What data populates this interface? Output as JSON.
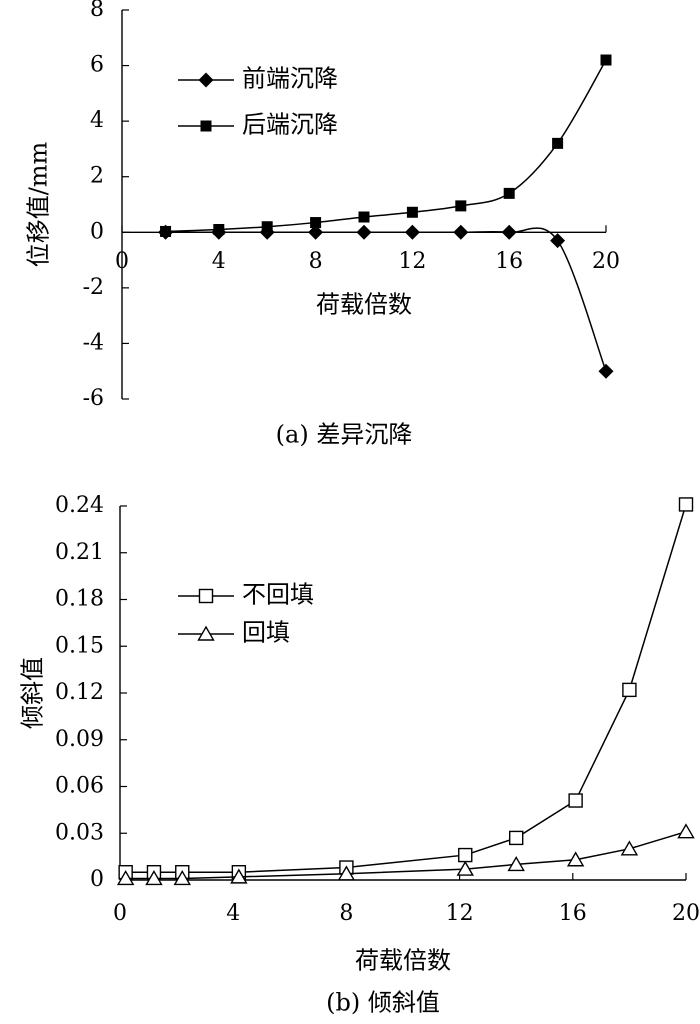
{
  "chart_data": [
    {
      "type": "line",
      "caption": "(a) 差异沉降",
      "xlabel": "荷载倍数",
      "ylabel": "位移值/mm",
      "xlim": [
        0,
        20
      ],
      "ylim": [
        -6,
        8
      ],
      "xticks": [
        0,
        4,
        8,
        12,
        16,
        20
      ],
      "yticks": [
        -6,
        -4,
        -2,
        0,
        2,
        4,
        6,
        8
      ],
      "legend_position": "top-left",
      "grid": false,
      "series": [
        {
          "name": "前端沉降",
          "marker": "diamond-filled",
          "x": [
            1.8,
            4,
            6,
            8,
            10,
            12,
            14,
            16,
            18,
            20
          ],
          "y": [
            0,
            0,
            0,
            0,
            0,
            0,
            0,
            0,
            -0.3,
            -5
          ]
        },
        {
          "name": "后端沉降",
          "marker": "square-filled",
          "x": [
            1.8,
            4,
            6,
            8,
            10,
            12,
            14,
            16,
            18,
            20
          ],
          "y": [
            0.03,
            0.1,
            0.2,
            0.35,
            0.55,
            0.72,
            0.95,
            1.4,
            3.2,
            6.2
          ]
        }
      ]
    },
    {
      "type": "line",
      "caption": "(b) 倾斜值",
      "xlabel": "荷载倍数",
      "ylabel": "倾斜值",
      "xlim": [
        0,
        20
      ],
      "ylim": [
        0,
        0.24
      ],
      "xticks": [
        0,
        4,
        8,
        12,
        16,
        20
      ],
      "yticks": [
        0,
        0.03,
        0.06,
        0.09,
        0.12,
        0.15,
        0.18,
        0.21,
        0.24
      ],
      "ytick_labels": [
        "0",
        "0.03",
        "0.06",
        "0.09",
        "0.12",
        "0.15",
        "0.18",
        "0.21",
        "0.24"
      ],
      "legend_position": "top-left",
      "grid": false,
      "series": [
        {
          "name": "不回填",
          "marker": "square-open",
          "x": [
            0.2,
            1.2,
            2.2,
            4.2,
            8,
            12.2,
            14,
            16.1,
            18,
            20
          ],
          "y": [
            0.005,
            0.005,
            0.005,
            0.005,
            0.008,
            0.016,
            0.027,
            0.051,
            0.122,
            0.241
          ]
        },
        {
          "name": "回填",
          "marker": "triangle-open",
          "x": [
            0.2,
            1.2,
            2.2,
            4.2,
            8,
            12.2,
            14,
            16.1,
            18,
            20
          ],
          "y": [
            0.001,
            0.001,
            0.001,
            0.002,
            0.004,
            0.007,
            0.01,
            0.013,
            0.02,
            0.031
          ]
        }
      ]
    }
  ]
}
